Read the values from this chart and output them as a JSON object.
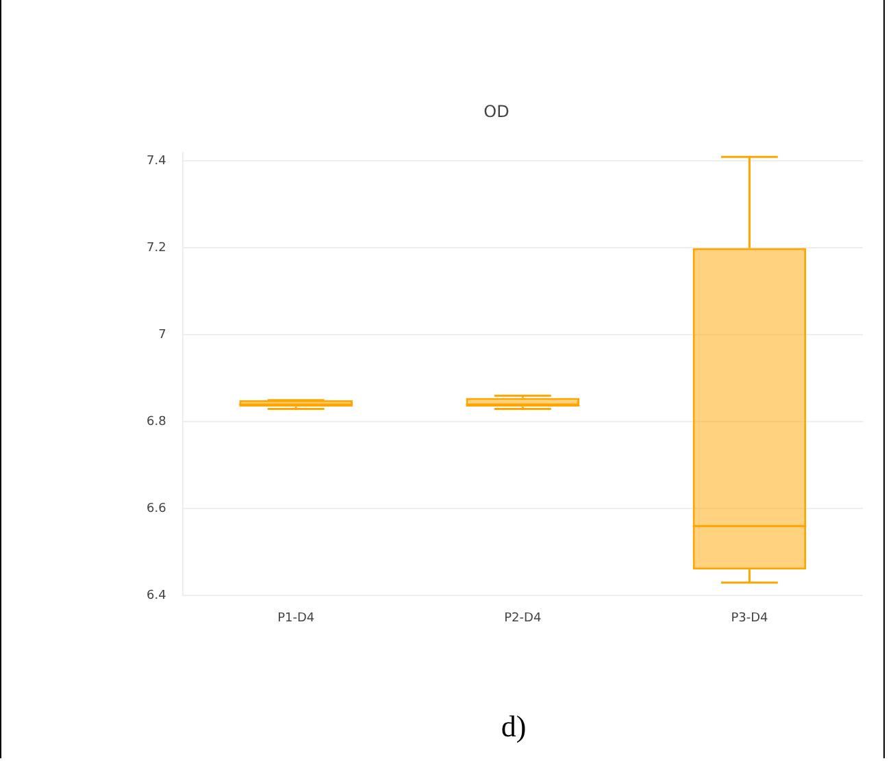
{
  "chart_data": {
    "type": "box",
    "title": "OD",
    "categories": [
      "P1-D4",
      "P2-D4",
      "P3-D4"
    ],
    "color": "#ffa500",
    "boxes": [
      {
        "low": 6.83,
        "q1": 6.835,
        "median": 6.84,
        "q3": 6.85,
        "high": 6.85
      },
      {
        "low": 6.83,
        "q1": 6.835,
        "median": 6.84,
        "q3": 6.855,
        "high": 6.86
      },
      {
        "low": 6.43,
        "q1": 6.46,
        "median": 6.56,
        "q3": 7.2,
        "high": 7.41
      }
    ],
    "ylim": [
      6.4,
      7.42
    ],
    "yticks": [
      6.4,
      6.6,
      6.8,
      7,
      7.2,
      7.4
    ],
    "grid": "y",
    "legend": false,
    "annotations": [
      "d)"
    ]
  }
}
